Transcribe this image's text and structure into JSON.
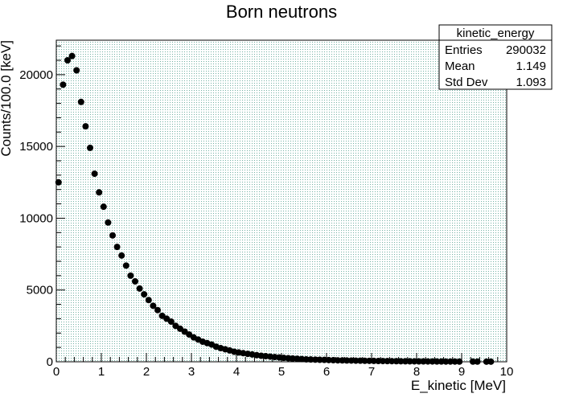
{
  "chart_data": {
    "type": "scatter",
    "title": "Born neutrons",
    "xlabel": "E_kinetic [MeV]",
    "ylabel": "Counts/100.0 [keV]",
    "xlim": [
      0,
      10
    ],
    "ylim": [
      0,
      22400
    ],
    "grid": true,
    "x_ticks": [
      "0",
      "1",
      "2",
      "3",
      "4",
      "5",
      "6",
      "7",
      "8",
      "9",
      "10"
    ],
    "y_ticks": [
      "0",
      "5000",
      "10000",
      "15000",
      "20000"
    ],
    "stats_box": {
      "title": "kinetic_energy",
      "rows": [
        {
          "label": "Entries",
          "value": "290032"
        },
        {
          "label": "Mean",
          "value": "1.149"
        },
        {
          "label": "Std Dev",
          "value": "1.093"
        }
      ],
      "placement": "top-right"
    },
    "series": [
      {
        "x": [
          0.05,
          0.15,
          0.25,
          0.35,
          0.45,
          0.55,
          0.65,
          0.75,
          0.85,
          0.95,
          1.05,
          1.15,
          1.25,
          1.35,
          1.45,
          1.55,
          1.65,
          1.75,
          1.85,
          1.95,
          2.05,
          2.15,
          2.25,
          2.35,
          2.45,
          2.55,
          2.65,
          2.75,
          2.85,
          2.95,
          3.05,
          3.15,
          3.25,
          3.35,
          3.45,
          3.55,
          3.65,
          3.75,
          3.85,
          3.95,
          4.05,
          4.15,
          4.25,
          4.35,
          4.45,
          4.55,
          4.65,
          4.75,
          4.85,
          4.95,
          5.05,
          5.15,
          5.25,
          5.35,
          5.45,
          5.55,
          5.65,
          5.75,
          5.85,
          5.95,
          6.05,
          6.15,
          6.25,
          6.35,
          6.45,
          6.55,
          6.65,
          6.75,
          6.85,
          6.95,
          7.05,
          7.15,
          7.25,
          7.35,
          7.45,
          7.55,
          7.65,
          7.75,
          7.85,
          7.95,
          8.05,
          8.15,
          8.25,
          8.35,
          8.45,
          8.55,
          8.65,
          8.75,
          8.85,
          8.95,
          9.25,
          9.35,
          9.55,
          9.65
        ],
        "y": [
          12500,
          19300,
          21000,
          21300,
          20300,
          18100,
          16400,
          14900,
          13100,
          11800,
          10800,
          9700,
          8800,
          8000,
          7400,
          6700,
          6000,
          5600,
          5100,
          4700,
          4300,
          3900,
          3600,
          3200,
          3000,
          2800,
          2500,
          2300,
          2100,
          1900,
          1700,
          1550,
          1400,
          1300,
          1200,
          1050,
          950,
          870,
          790,
          700,
          650,
          600,
          550,
          510,
          460,
          420,
          390,
          360,
          330,
          300,
          270,
          250,
          230,
          210,
          190,
          170,
          160,
          150,
          140,
          130,
          120,
          110,
          100,
          95,
          90,
          85,
          80,
          75,
          70,
          65,
          60,
          55,
          50,
          47,
          44,
          41,
          38,
          35,
          32,
          30,
          28,
          26,
          24,
          22,
          20,
          18,
          17,
          16,
          15,
          14,
          12,
          11,
          10,
          9
        ]
      }
    ]
  }
}
